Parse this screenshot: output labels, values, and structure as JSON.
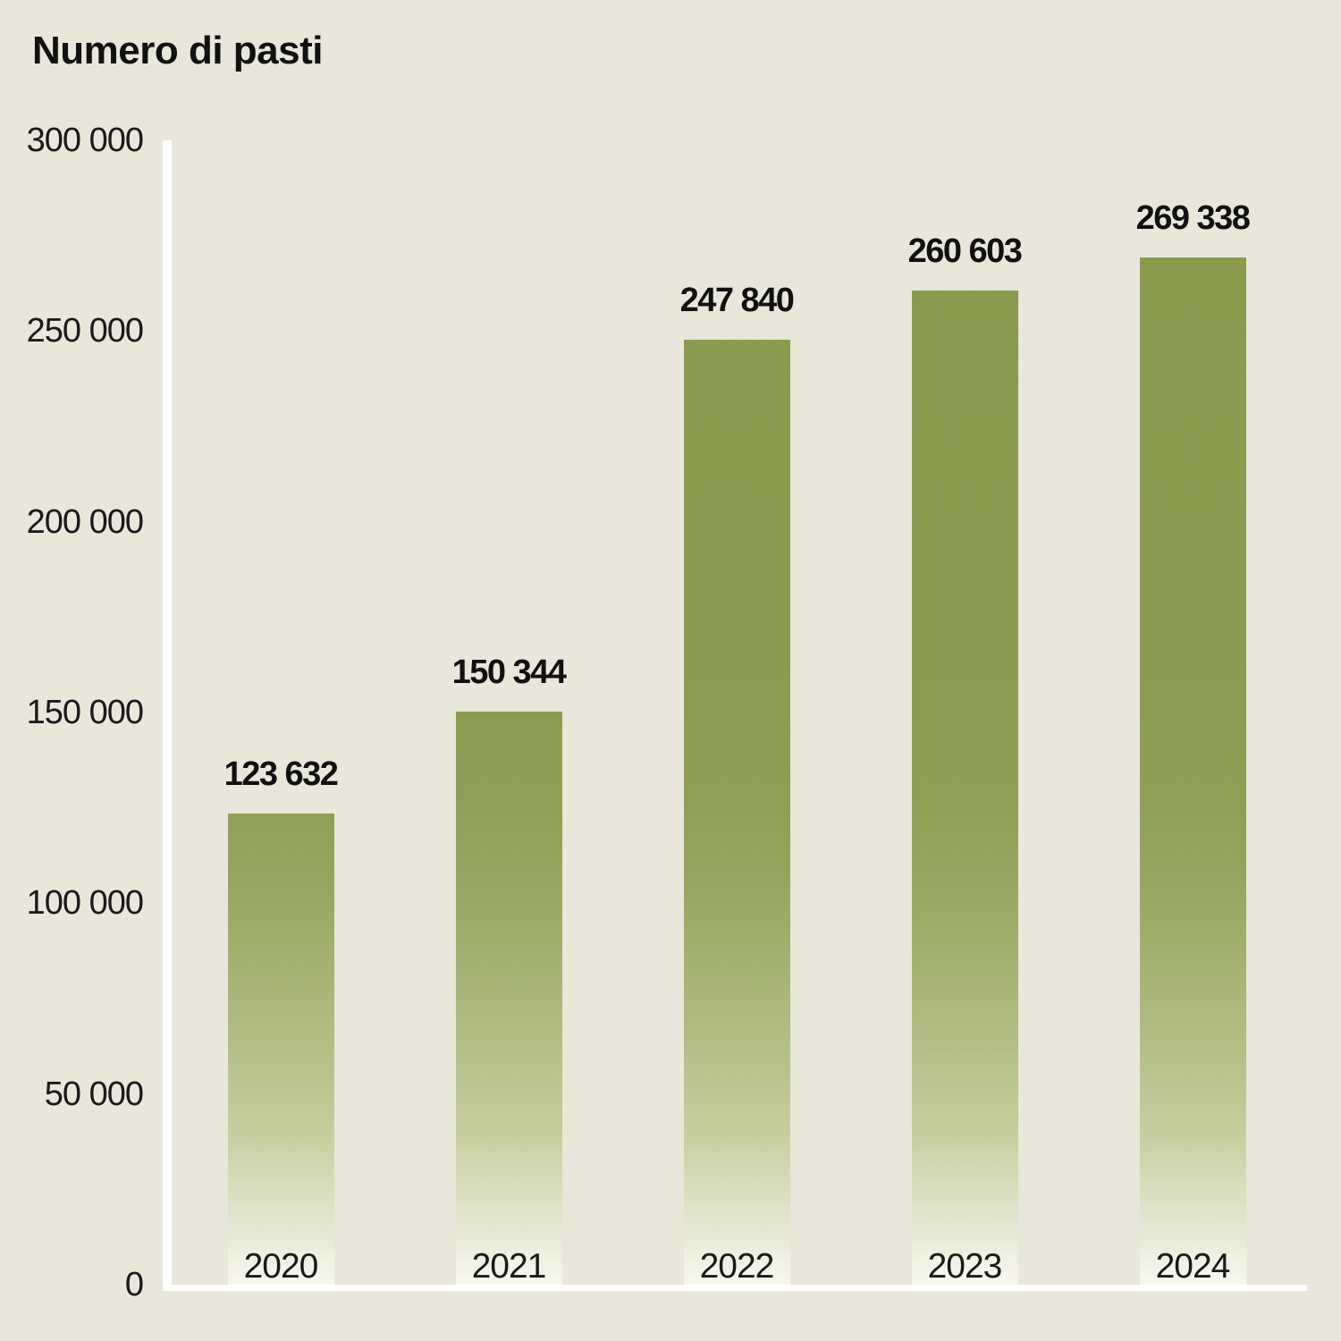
{
  "title": "Numero di pasti",
  "colors": {
    "background": "#e8e7d9",
    "bar_green": "#8a9b4e",
    "bar_fade_bottom": "#f7f8ec",
    "axis": "#ffffff",
    "text": "#1a1a1a"
  },
  "chart_data": {
    "type": "bar",
    "title": "Numero di pasti",
    "categories": [
      "2020",
      "2021",
      "2022",
      "2023",
      "2024"
    ],
    "values": [
      123632,
      150344,
      247840,
      260603,
      269338
    ],
    "value_labels": [
      "123 632",
      "150 344",
      "247 840",
      "260 603",
      "269 338"
    ],
    "xlabel": "",
    "ylabel": "",
    "ylim": [
      0,
      300000
    ],
    "ytick_values": [
      300000,
      250000,
      200000,
      150000,
      100000,
      50000,
      0
    ],
    "ytick_labels": [
      "300 000",
      "250 000",
      "200 000",
      "150 000",
      "100 000",
      "50 000",
      "0"
    ],
    "grid": false,
    "legend": "none",
    "bar_style": "solid olive green at top fading to near-white at the baseline (vertical gradient shared across bars)"
  }
}
